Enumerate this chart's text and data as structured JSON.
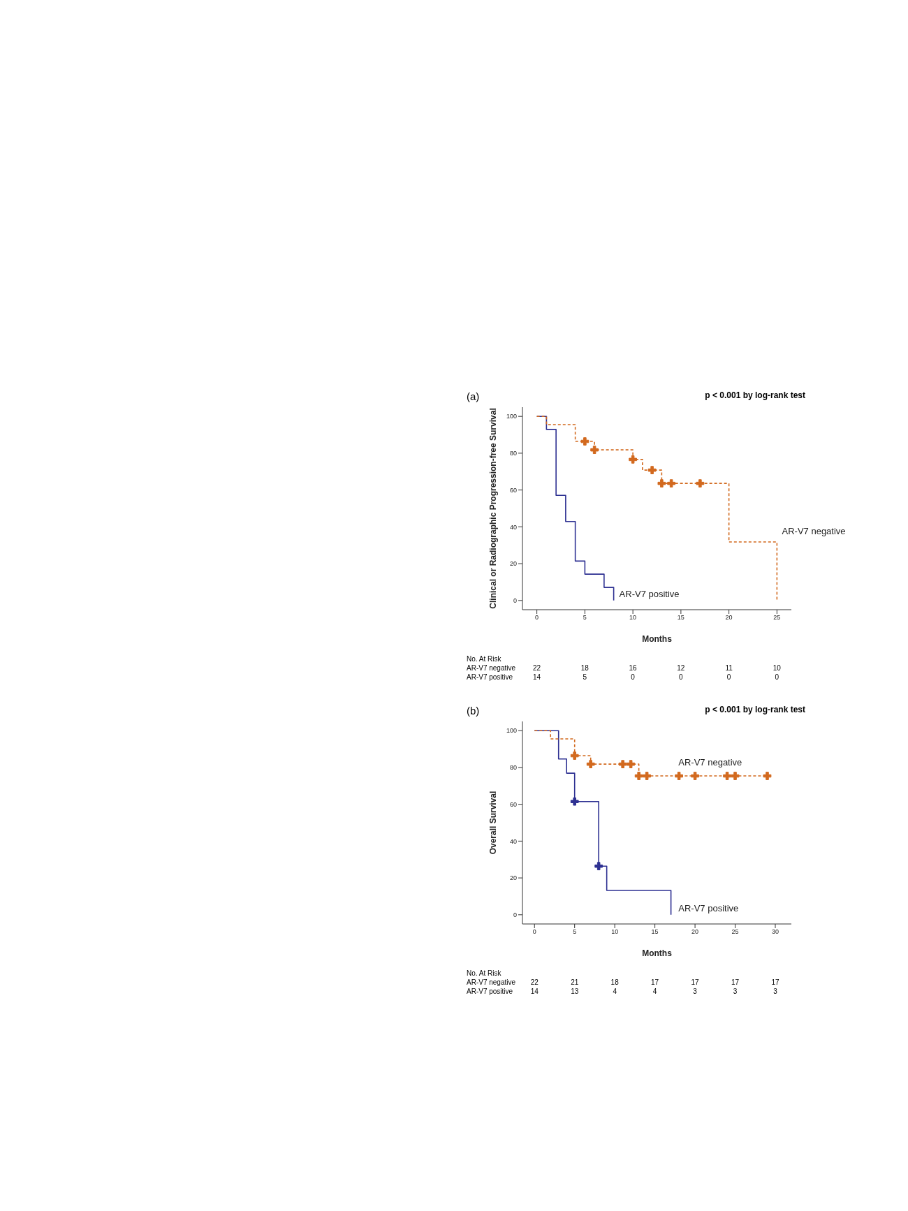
{
  "chart_data": [
    {
      "type": "step",
      "title": "(a)",
      "xlabel": "Months",
      "ylabel": "Clinical or Radiographic Progression-free Survival",
      "xlim": [
        -1.5,
        26.5
      ],
      "xticks": [
        0,
        5,
        10,
        15,
        20,
        25
      ],
      "ylim": [
        -5,
        105
      ],
      "yticks": [
        0,
        20,
        40,
        60,
        80,
        100
      ],
      "legend": false,
      "grid": false,
      "annotations": [
        "p < 0.001 by log-rank test",
        "No. At Risk",
        "AR-V7 negative",
        "AR-V7 positive",
        "22",
        "18",
        "16",
        "12",
        "11",
        "10",
        "14",
        "5",
        "0",
        "0",
        "0",
        "0"
      ],
      "series": [
        {
          "name": "AR-V7 positive",
          "color": "#2e3192",
          "line_style": "solid",
          "x": [
            0,
            1,
            2,
            3,
            4,
            5,
            7,
            8
          ],
          "values": [
            100,
            92.9,
            57.1,
            42.9,
            21.4,
            14.3,
            7.1,
            0
          ]
        },
        {
          "name": "AR-V7 negative",
          "color": "#d2691e",
          "line_style": "dashed",
          "x": [
            0,
            1,
            4,
            6,
            10,
            11,
            13,
            20,
            25
          ],
          "values": [
            100,
            95.5,
            86.4,
            81.8,
            76.6,
            70.8,
            63.6,
            31.8,
            0
          ]
        },
        {
          "type": "scatter",
          "marker": "cross",
          "color": "#d2691e",
          "x": [
            5,
            6,
            10,
            12,
            13,
            14,
            17
          ],
          "values": [
            86.4,
            81.8,
            76.6,
            70.8,
            63.6,
            63.6,
            63.6
          ]
        }
      ]
    },
    {
      "type": "step",
      "title": "(b)",
      "xlabel": "Months",
      "ylabel": "Overall Survival",
      "xlim": [
        -1.5,
        32
      ],
      "xticks": [
        0,
        5,
        10,
        15,
        20,
        25,
        30
      ],
      "ylim": [
        -5,
        105
      ],
      "yticks": [
        0,
        20,
        40,
        60,
        80,
        100
      ],
      "legend": false,
      "grid": false,
      "annotations": [
        "p < 0.001 by log-rank test",
        "No. At Risk",
        "AR-V7 negative",
        "AR-V7 positive",
        "22",
        "21",
        "18",
        "17",
        "17",
        "17",
        "17",
        "14",
        "13",
        "4",
        "4",
        "3",
        "3",
        "3"
      ],
      "series": [
        {
          "name": "AR-V7 positive",
          "color": "#2e3192",
          "line_style": "solid",
          "x": [
            0,
            3,
            4,
            5,
            8,
            9,
            17
          ],
          "values": [
            100,
            84.6,
            76.9,
            61.5,
            26.4,
            13.2,
            0
          ]
        },
        {
          "name": "AR-V7 negative",
          "color": "#d2691e",
          "line_style": "dashed",
          "x": [
            0,
            2,
            5,
            7,
            13,
            29
          ],
          "values": [
            100,
            95.5,
            86.4,
            81.8,
            75.4,
            75.4
          ]
        },
        {
          "type": "scatter",
          "marker": "cross",
          "color": "#2e3192",
          "x": [
            5,
            8
          ],
          "values": [
            61.5,
            26.4
          ]
        },
        {
          "type": "scatter",
          "marker": "cross",
          "color": "#d2691e",
          "x": [
            5,
            7,
            11,
            12,
            13,
            14,
            18,
            20,
            24,
            25,
            29
          ],
          "values": [
            86.4,
            81.8,
            81.8,
            81.8,
            75.4,
            75.4,
            75.4,
            75.4,
            75.4,
            75.4,
            75.4
          ]
        }
      ]
    }
  ]
}
